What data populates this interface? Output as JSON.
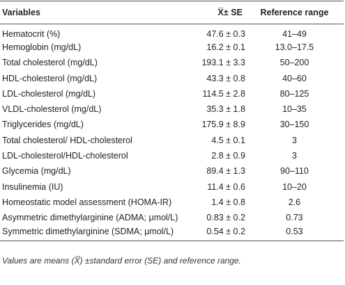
{
  "table": {
    "header": [
      "Variables",
      "X̅± SE",
      "Reference range"
    ],
    "rows": [
      [
        "Hematocrit (%)",
        "47.6 ± 0.3",
        "41–49"
      ],
      [
        "Hemoglobin (mg/dL)",
        "16.2 ± 0.1",
        "13.0–17.5"
      ],
      [
        "Total cholesterol (mg/dL)",
        "193.1 ± 3.3",
        "50–200"
      ],
      [
        "HDL-cholesterol (mg/dL)",
        "43.3 ± 0.8",
        "40–60"
      ],
      [
        "LDL-cholesterol (mg/dL)",
        "114.5 ± 2.8",
        "80–125"
      ],
      [
        "VLDL-cholesterol (mg/dL)",
        "35.3 ± 1.8",
        "10–35"
      ],
      [
        "Triglycerides (mg/dL)",
        "175.9 ± 8.9",
        "30–150"
      ],
      [
        "Total cholesterol/ HDL-cholesterol",
        "4.5 ± 0.1",
        "3"
      ],
      [
        "LDL-cholesterol/HDL-cholesterol",
        "2.8 ± 0.9",
        "3"
      ],
      [
        "Glycemia (mg/dL)",
        "89.4 ± 1.3",
        "90–110"
      ],
      [
        "Insulinemia (IU)",
        "11.4 ± 0.6",
        "10–20"
      ],
      [
        "Homeostatic model assessment (HOMA-IR)",
        "1.4 ± 0.8",
        "2.6"
      ],
      [
        "Asymmetric dimethylarginine (ADMA; μmol/L)",
        "0.83 ± 0.2",
        "0.73"
      ],
      [
        "Symmetric dimethylarginine (SDMA; μmol/L)",
        "0.54 ± 0.2",
        "0.53"
      ]
    ]
  },
  "footnote": "Values are means (X̅) ±standard error (SE) and reference range."
}
